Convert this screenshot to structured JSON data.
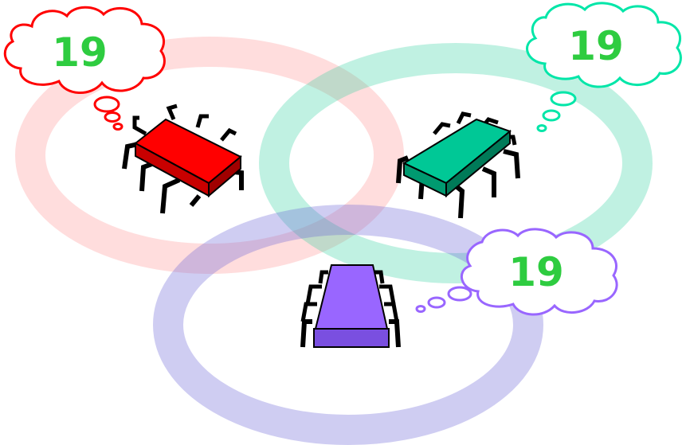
{
  "colors": {
    "red": "#ff0000",
    "green": "#00c896",
    "purple": "#9966ff",
    "number": "#2ecc40",
    "ring_red": "#ffdada",
    "ring_green": "#c0f0e4",
    "ring_purple": "#cfcdf0"
  },
  "bubbles": {
    "red": {
      "value": "19"
    },
    "green": {
      "value": "19"
    },
    "purple": {
      "value": "19"
    }
  }
}
